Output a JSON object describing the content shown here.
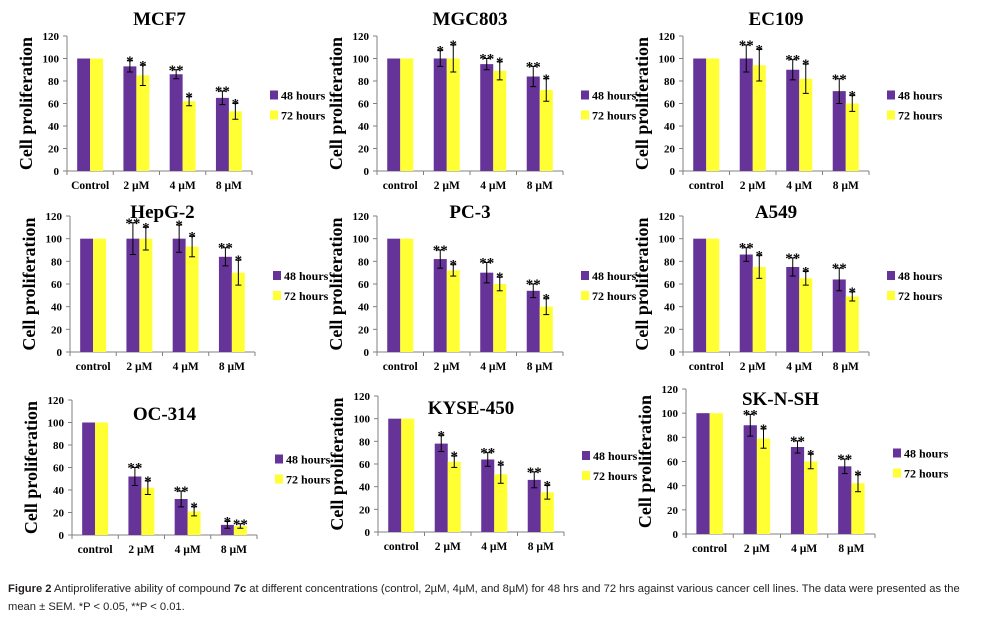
{
  "chart_data": [
    {
      "type": "bar",
      "title": "MCF7",
      "ylabel": "Cell proliferation",
      "xlabel": "",
      "ylim": [
        0,
        120
      ],
      "yticks": [
        0,
        20,
        40,
        60,
        80,
        100,
        120
      ],
      "categories": [
        "Control",
        "2 µM",
        "4 µM",
        "8 µM"
      ],
      "series": [
        {
          "name": "48 hours",
          "values": [
            100,
            93,
            86,
            65
          ],
          "errors": [
            0,
            5,
            4,
            6
          ],
          "significance": [
            "",
            "*",
            "**",
            "**"
          ]
        },
        {
          "name": "72 hours",
          "values": [
            100,
            85,
            62,
            53
          ],
          "errors": [
            0,
            9,
            4,
            7
          ],
          "significance": [
            "",
            "*",
            "*",
            "*"
          ]
        }
      ],
      "legend": "right"
    },
    {
      "type": "bar",
      "title": "MGC803",
      "ylabel": "Cell proliferation",
      "xlabel": "",
      "ylim": [
        0,
        120
      ],
      "yticks": [
        0,
        20,
        40,
        60,
        80,
        100,
        120
      ],
      "categories": [
        "control",
        "2 µM",
        "4 µM",
        "8 µM"
      ],
      "series": [
        {
          "name": "48 hours",
          "values": [
            100,
            100,
            95,
            84
          ],
          "errors": [
            0,
            7,
            5,
            9
          ],
          "significance": [
            "",
            "*",
            "**",
            "**"
          ]
        },
        {
          "name": "72 hours",
          "values": [
            100,
            100,
            89,
            72
          ],
          "errors": [
            0,
            12,
            8,
            10
          ],
          "significance": [
            "",
            "*",
            "*",
            "*"
          ]
        }
      ],
      "legend": "right"
    },
    {
      "type": "bar",
      "title": "EC109",
      "ylabel": "Cell proliferation",
      "xlabel": "",
      "ylim": [
        0,
        120
      ],
      "yticks": [
        0,
        20,
        40,
        60,
        80,
        100,
        120
      ],
      "categories": [
        "control",
        "2 µM",
        "4 µM",
        "8 µM"
      ],
      "series": [
        {
          "name": "48 hours",
          "values": [
            100,
            100,
            90,
            71
          ],
          "errors": [
            0,
            12,
            9,
            11
          ],
          "significance": [
            "",
            "**",
            "**",
            "**"
          ]
        },
        {
          "name": "72 hours",
          "values": [
            100,
            94,
            82,
            60
          ],
          "errors": [
            0,
            14,
            13,
            7
          ],
          "significance": [
            "",
            "*",
            "*",
            "*"
          ]
        }
      ],
      "legend": "right"
    },
    {
      "type": "bar",
      "title": "HepG-2",
      "ylabel": "Cell proliferation",
      "xlabel": "",
      "ylim": [
        0,
        120
      ],
      "yticks": [
        0,
        20,
        40,
        60,
        80,
        100,
        120
      ],
      "categories": [
        "control",
        "2 µM",
        "4 µM",
        "8 µM"
      ],
      "series": [
        {
          "name": "48 hours",
          "values": [
            100,
            100,
            100,
            84
          ],
          "errors": [
            0,
            14,
            12,
            8
          ],
          "significance": [
            "",
            "**",
            "*",
            "**"
          ]
        },
        {
          "name": "72 hours",
          "values": [
            100,
            100,
            93,
            70
          ],
          "errors": [
            0,
            10,
            9,
            11
          ],
          "significance": [
            "",
            "*",
            "*",
            "*"
          ]
        }
      ],
      "legend": "right"
    },
    {
      "type": "bar",
      "title": "PC-3",
      "ylabel": "Cell proliferation",
      "xlabel": "",
      "ylim": [
        0,
        120
      ],
      "yticks": [
        0,
        20,
        40,
        60,
        80,
        100,
        120
      ],
      "categories": [
        "control",
        "2 µM",
        "4 µM",
        "8 µM"
      ],
      "series": [
        {
          "name": "48 hours",
          "values": [
            100,
            82,
            70,
            54
          ],
          "errors": [
            0,
            8,
            9,
            6
          ],
          "significance": [
            "",
            "**",
            "**",
            "**"
          ]
        },
        {
          "name": "72 hours",
          "values": [
            100,
            72,
            60,
            40
          ],
          "errors": [
            0,
            5,
            6,
            7
          ],
          "significance": [
            "",
            "*",
            "*",
            "*"
          ]
        }
      ],
      "legend": "right"
    },
    {
      "type": "bar",
      "title": "A549",
      "ylabel": "Cell proliferation",
      "xlabel": "",
      "ylim": [
        0,
        120
      ],
      "yticks": [
        0,
        20,
        40,
        60,
        80,
        100,
        120
      ],
      "categories": [
        "control",
        "2 µM",
        "4 µM",
        "8 µM"
      ],
      "series": [
        {
          "name": "48 hours",
          "values": [
            100,
            86,
            75,
            64
          ],
          "errors": [
            0,
            6,
            8,
            10
          ],
          "significance": [
            "",
            "**",
            "**",
            "**"
          ]
        },
        {
          "name": "72 hours",
          "values": [
            100,
            75,
            65,
            49
          ],
          "errors": [
            0,
            10,
            6,
            4
          ],
          "significance": [
            "",
            "*",
            "*",
            "*"
          ]
        }
      ],
      "legend": "right"
    },
    {
      "type": "bar",
      "title": "OC-314",
      "ylabel": "Cell proliferation",
      "xlabel": "",
      "ylim": [
        0,
        120
      ],
      "yticks": [
        0,
        20,
        40,
        60,
        80,
        100,
        120
      ],
      "categories": [
        "control",
        "2 µM",
        "4 µM",
        "8 µM"
      ],
      "series": [
        {
          "name": "48 hours",
          "values": [
            100,
            52,
            32,
            9
          ],
          "errors": [
            0,
            8,
            7,
            3
          ],
          "significance": [
            "",
            "**",
            "**",
            "*"
          ]
        },
        {
          "name": "72 hours",
          "values": [
            100,
            42,
            21,
            8
          ],
          "errors": [
            0,
            6,
            4,
            2
          ],
          "significance": [
            "",
            "*",
            "*",
            "**"
          ]
        }
      ],
      "legend": "right"
    },
    {
      "type": "bar",
      "title": "KYSE-450",
      "ylabel": "Cell proliferation",
      "xlabel": "",
      "ylim": [
        0,
        120
      ],
      "yticks": [
        0,
        20,
        40,
        60,
        80,
        100,
        120
      ],
      "categories": [
        "control",
        "2 µM",
        "4 µM",
        "8 µM"
      ],
      "series": [
        {
          "name": "48 hours",
          "values": [
            100,
            78,
            64,
            46
          ],
          "errors": [
            0,
            7,
            6,
            7
          ],
          "significance": [
            "",
            "*",
            "**",
            "**"
          ]
        },
        {
          "name": "72 hours",
          "values": [
            100,
            62,
            51,
            35
          ],
          "errors": [
            0,
            5,
            8,
            6
          ],
          "significance": [
            "",
            "*",
            "*",
            "*"
          ]
        }
      ],
      "legend": "right"
    },
    {
      "type": "bar",
      "title": "SK-N-SH",
      "ylabel": "Cell proliferation",
      "xlabel": "",
      "ylim": [
        0,
        120
      ],
      "yticks": [
        0,
        20,
        40,
        60,
        80,
        100,
        120
      ],
      "categories": [
        "control",
        "2 µM",
        "4 µM",
        "8 µM"
      ],
      "series": [
        {
          "name": "48 hours",
          "values": [
            100,
            90,
            72,
            56
          ],
          "errors": [
            0,
            9,
            5,
            6
          ],
          "significance": [
            "",
            "**",
            "**",
            "**"
          ]
        },
        {
          "name": "72 hours",
          "values": [
            100,
            79,
            60,
            42
          ],
          "errors": [
            0,
            8,
            6,
            7
          ],
          "significance": [
            "",
            "*",
            "*",
            "*"
          ]
        }
      ],
      "legend": "right"
    }
  ],
  "colors": {
    "series_48h": "#663399",
    "series_72h": "#ffff33",
    "axis": "#808080",
    "text": "#000000"
  },
  "caption": {
    "label": "Figure 2",
    "text_before": " Antiproliferative ability of compound ",
    "compound": "7c",
    "text_after": " at different concentrations (control, 2µM, 4µM, and 8µM) for 48 hrs and 72 hrs against various cancer cell lines. The data were presented as the mean ± SEM. *P < 0.05, **P < 0.01."
  }
}
